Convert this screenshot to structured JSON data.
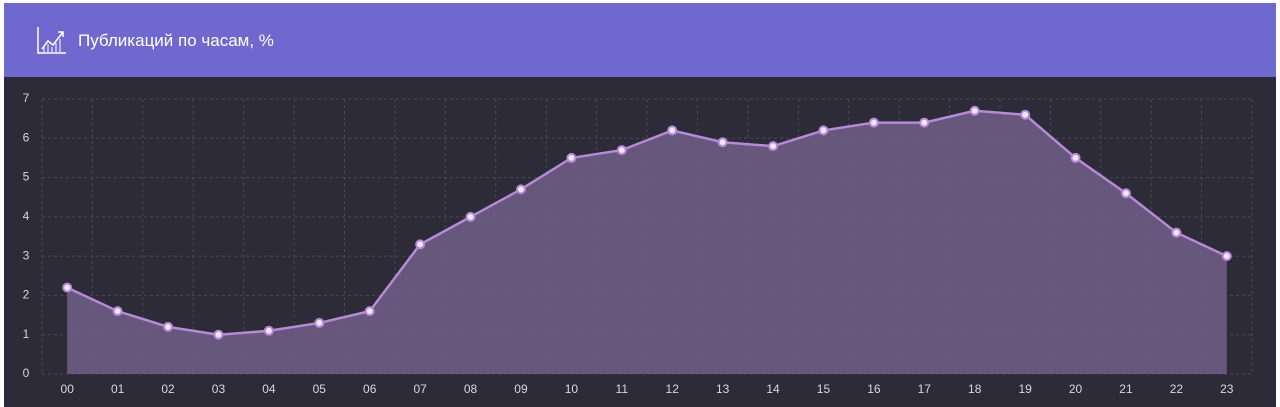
{
  "chart_data": {
    "type": "line",
    "title": "Публикаций по часам, %",
    "categories": [
      "00",
      "01",
      "02",
      "03",
      "04",
      "05",
      "06",
      "07",
      "08",
      "09",
      "10",
      "11",
      "12",
      "13",
      "14",
      "15",
      "16",
      "17",
      "18",
      "19",
      "20",
      "21",
      "22",
      "23"
    ],
    "values": [
      2.2,
      1.6,
      1.2,
      1.0,
      1.1,
      1.3,
      1.6,
      3.3,
      4.0,
      4.7,
      5.5,
      5.7,
      6.2,
      5.9,
      5.8,
      6.2,
      6.4,
      6.4,
      6.7,
      6.6,
      5.5,
      4.6,
      3.6,
      3.0
    ],
    "color": "#b58ad6",
    "area_color": "#6c5a80",
    "ylim": [
      0,
      7
    ],
    "yticks": [
      0,
      1,
      2,
      3,
      4,
      5,
      6,
      7
    ],
    "grid": true
  }
}
